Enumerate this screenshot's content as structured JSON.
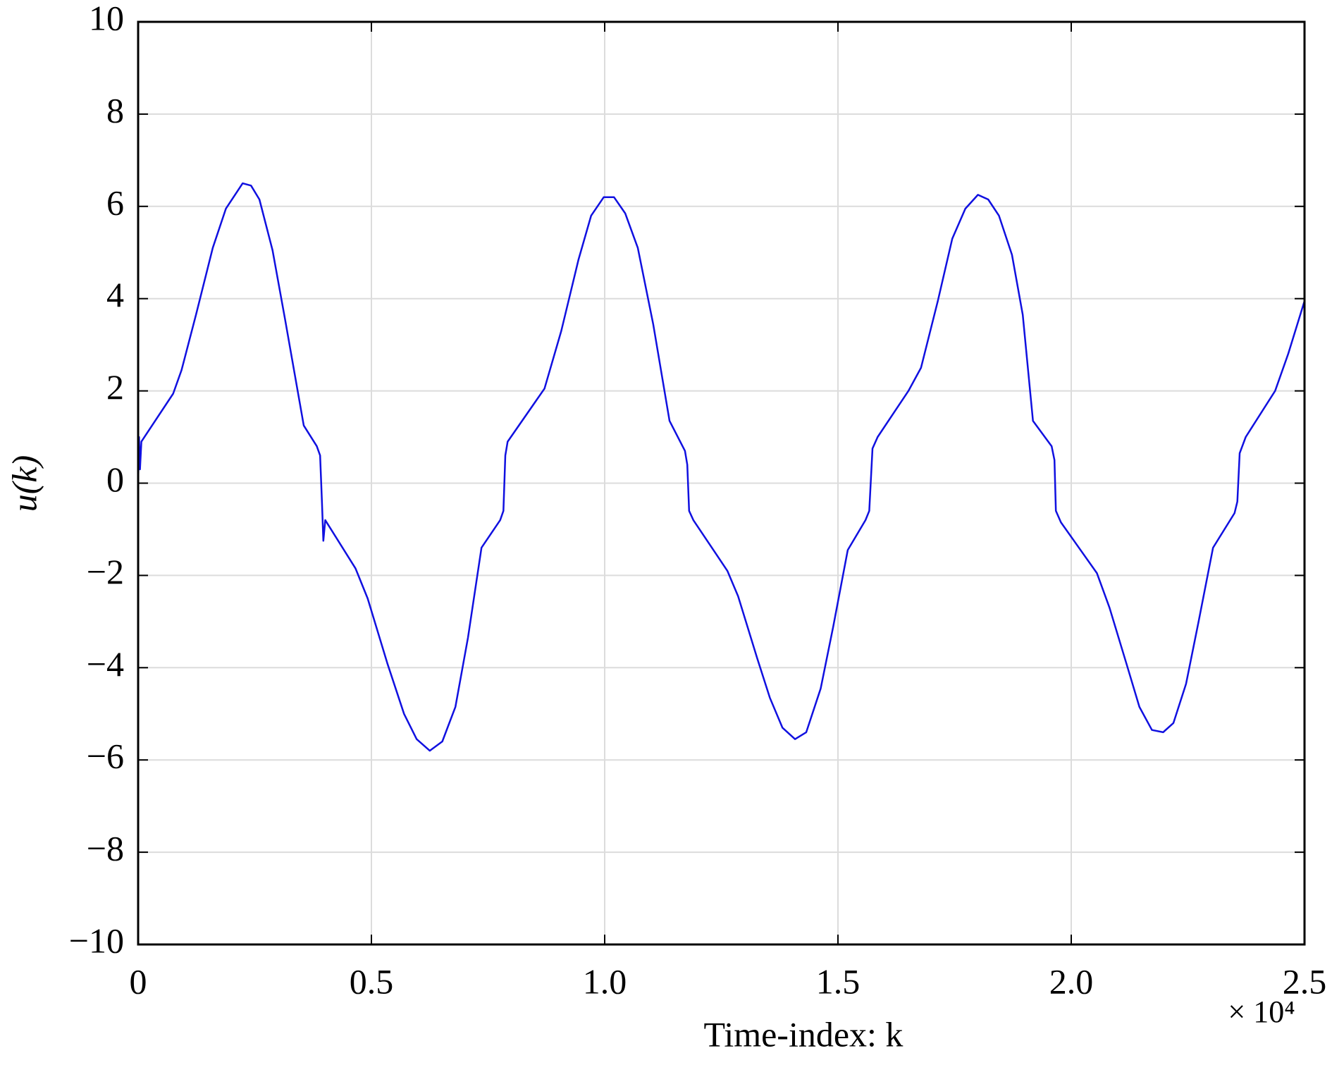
{
  "chart_data": {
    "type": "line",
    "ylabel": "u(k)",
    "xlabel": "Time-index: k",
    "x_multiplier": "× 10⁴",
    "xlim": [
      0,
      2.5
    ],
    "xticks": [
      0,
      0.5,
      {
        "value": 1,
        "label": "1.0"
      },
      1.5,
      {
        "value": 2,
        "label": "2.0"
      },
      2.5
    ],
    "ylim": [
      -10,
      10
    ],
    "yticks": [
      {
        "value": -10,
        "label": "−10"
      },
      {
        "value": -8,
        "label": "−8"
      },
      {
        "value": -6,
        "label": "−6"
      },
      {
        "value": -4,
        "label": "−4"
      },
      {
        "value": -2,
        "label": "−2"
      },
      0,
      2,
      4,
      6,
      8,
      10
    ],
    "grid": true,
    "x": [
      0,
      0.002,
      0.004,
      0.007,
      0.075,
      0.093,
      0.124,
      0.16,
      0.188,
      0.224,
      0.242,
      0.26,
      0.288,
      0.315,
      0.355,
      0.383,
      0.39,
      0.394,
      0.397,
      0.401,
      0.466,
      0.492,
      0.534,
      0.57,
      0.597,
      0.625,
      0.652,
      0.68,
      0.707,
      0.736,
      0.776,
      0.783,
      0.787,
      0.792,
      0.871,
      0.907,
      0.944,
      0.971,
      0.998,
      1.02,
      1.044,
      1.071,
      1.104,
      1.139,
      1.172,
      1.177,
      1.181,
      1.19,
      1.263,
      1.286,
      1.327,
      1.354,
      1.381,
      1.408,
      1.432,
      1.463,
      1.49,
      1.521,
      1.559,
      1.567,
      1.574,
      1.585,
      1.651,
      1.678,
      1.714,
      1.745,
      1.773,
      1.8,
      1.822,
      1.845,
      1.873,
      1.896,
      1.918,
      1.958,
      1.964,
      1.967,
      1.978,
      2.055,
      2.082,
      2.118,
      2.146,
      2.173,
      2.197,
      2.219,
      2.246,
      2.273,
      2.304,
      2.35,
      2.356,
      2.361,
      2.374,
      2.437,
      2.465,
      2.5
    ],
    "series": [
      {
        "name": "u(k)",
        "color": "#1010e0",
        "values": [
          0,
          1.0,
          0.3,
          0.9,
          1.94,
          2.45,
          3.65,
          5.1,
          5.95,
          6.5,
          6.45,
          6.15,
          5.05,
          3.55,
          1.25,
          0.8,
          0.6,
          -0.4,
          -1.25,
          -0.8,
          -1.85,
          -2.5,
          -3.9,
          -5.0,
          -5.55,
          -5.8,
          -5.6,
          -4.85,
          -3.35,
          -1.4,
          -0.8,
          -0.6,
          0.6,
          0.9,
          2.05,
          3.3,
          4.85,
          5.8,
          6.2,
          6.2,
          5.85,
          5.1,
          3.45,
          1.35,
          0.7,
          0.4,
          -0.6,
          -0.8,
          -1.9,
          -2.45,
          -3.8,
          -4.65,
          -5.3,
          -5.55,
          -5.4,
          -4.45,
          -3.1,
          -1.45,
          -0.8,
          -0.6,
          0.75,
          1.0,
          2.0,
          2.5,
          3.95,
          5.3,
          5.95,
          6.25,
          6.15,
          5.8,
          4.95,
          3.65,
          1.35,
          0.8,
          0.5,
          -0.6,
          -0.85,
          -1.95,
          -2.7,
          -3.9,
          -4.85,
          -5.35,
          -5.4,
          -5.2,
          -4.35,
          -3.0,
          -1.4,
          -0.65,
          -0.4,
          0.65,
          1.0,
          2.0,
          2.8,
          3.95
        ]
      }
    ]
  }
}
